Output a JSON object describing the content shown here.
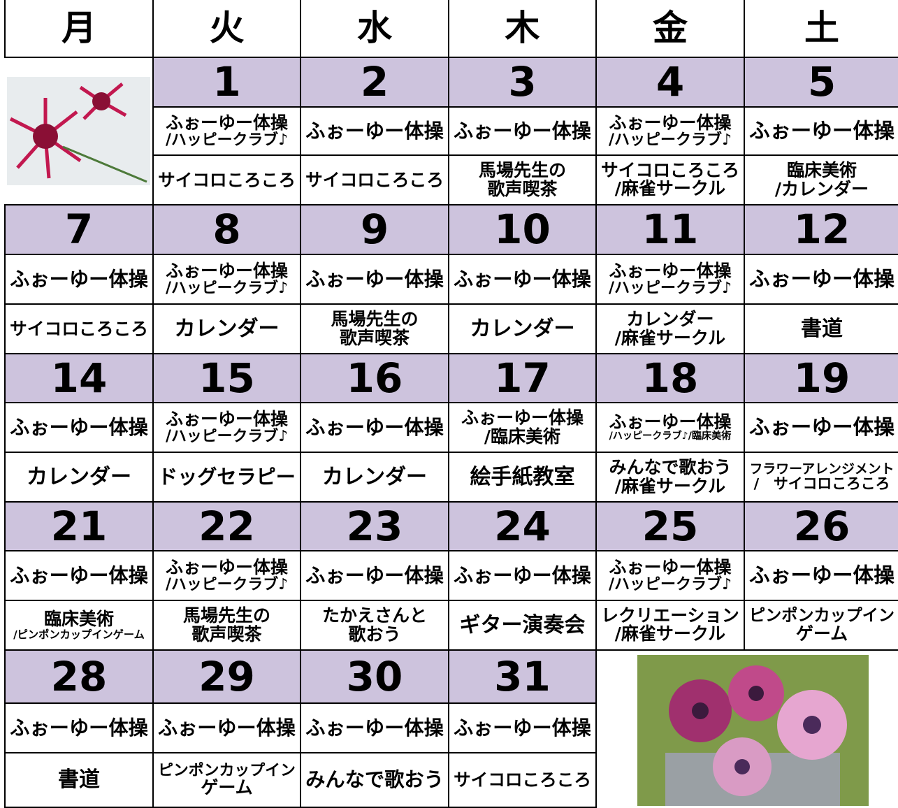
{
  "header": [
    "月",
    "火",
    "水",
    "木",
    "金",
    "土"
  ],
  "weeks": [
    {
      "days": [
        null,
        {
          "date": 1,
          "acts": [
            [
              "ふぉーゆー体操",
              "/ハッピークラブ♪"
            ],
            [
              "サイコロころころ"
            ]
          ]
        },
        {
          "date": 2,
          "acts": [
            [
              "ふぉーゆー体操"
            ],
            [
              "サイコロころころ"
            ]
          ]
        },
        {
          "date": 3,
          "acts": [
            [
              "ふぉーゆー体操"
            ],
            [
              "馬場先生の",
              "歌声喫茶"
            ]
          ]
        },
        {
          "date": 4,
          "acts": [
            [
              "ふぉーゆー体操",
              "/ハッピークラブ♪"
            ],
            [
              "サイコロころころ",
              "/麻雀サークル"
            ]
          ]
        },
        {
          "date": 5,
          "acts": [
            [
              "ふぉーゆー体操"
            ],
            [
              "臨床美術",
              "/カレンダー"
            ]
          ]
        }
      ]
    },
    {
      "days": [
        {
          "date": 7,
          "acts": [
            [
              "ふぉーゆー体操"
            ],
            [
              "サイコロころころ"
            ]
          ]
        },
        {
          "date": 8,
          "acts": [
            [
              "ふぉーゆー体操",
              "/ハッピークラブ♪"
            ],
            [
              "カレンダー"
            ]
          ]
        },
        {
          "date": 9,
          "acts": [
            [
              "ふぉーゆー体操"
            ],
            [
              "馬場先生の",
              "歌声喫茶"
            ]
          ]
        },
        {
          "date": 10,
          "acts": [
            [
              "ふぉーゆー体操"
            ],
            [
              "カレンダー"
            ]
          ]
        },
        {
          "date": 11,
          "acts": [
            [
              "ふぉーゆー体操",
              "/ハッピークラブ♪"
            ],
            [
              "カレンダー",
              "/麻雀サークル"
            ]
          ]
        },
        {
          "date": 12,
          "acts": [
            [
              "ふぉーゆー体操"
            ],
            [
              "書道"
            ]
          ]
        }
      ]
    },
    {
      "days": [
        {
          "date": 14,
          "acts": [
            [
              "ふぉーゆー体操"
            ],
            [
              "カレンダー"
            ]
          ]
        },
        {
          "date": 15,
          "acts": [
            [
              "ふぉーゆー体操",
              "/ハッピークラブ♪"
            ],
            [
              "ドッグセラピー"
            ]
          ]
        },
        {
          "date": 16,
          "acts": [
            [
              "ふぉーゆー体操"
            ],
            [
              "カレンダー"
            ]
          ]
        },
        {
          "date": 17,
          "acts": [
            [
              "ふぉーゆー体操",
              "/臨床美術"
            ],
            [
              "絵手紙教室"
            ]
          ]
        },
        {
          "date": 18,
          "acts": [
            [
              "ふぉーゆー体操",
              "/ハッピークラブ♪/臨床美術"
            ],
            [
              "みんなで歌おう",
              "/麻雀サークル"
            ]
          ]
        },
        {
          "date": 19,
          "acts": [
            [
              "ふぉーゆー体操"
            ],
            [
              "フラワーアレンジメント",
              "/　サイコロころころ"
            ]
          ]
        }
      ]
    },
    {
      "days": [
        {
          "date": 21,
          "acts": [
            [
              "ふぉーゆー体操"
            ],
            [
              "臨床美術",
              "/ピンポンカップインゲーム"
            ]
          ]
        },
        {
          "date": 22,
          "acts": [
            [
              "ふぉーゆー体操",
              "/ハッピークラブ♪"
            ],
            [
              "馬場先生の",
              "歌声喫茶"
            ]
          ]
        },
        {
          "date": 23,
          "acts": [
            [
              "ふぉーゆー体操"
            ],
            [
              "たかえさんと",
              "歌おう"
            ]
          ]
        },
        {
          "date": 24,
          "acts": [
            [
              "ふぉーゆー体操"
            ],
            [
              "ギター演奏会"
            ]
          ]
        },
        {
          "date": 25,
          "acts": [
            [
              "ふぉーゆー体操",
              "/ハッピークラブ♪"
            ],
            [
              "レクリエーション",
              "/麻雀サークル"
            ]
          ]
        },
        {
          "date": 26,
          "acts": [
            [
              "ふぉーゆー体操"
            ],
            [
              "ピンポンカップイン",
              "ゲーム"
            ]
          ]
        }
      ]
    },
    {
      "days": [
        {
          "date": 28,
          "acts": [
            [
              "ふぉーゆー体操"
            ],
            [
              "書道"
            ]
          ]
        },
        {
          "date": 29,
          "acts": [
            [
              "ふぉーゆー体操"
            ],
            [
              "ピンポンカップイン",
              "ゲーム"
            ]
          ]
        },
        {
          "date": 30,
          "acts": [
            [
              "ふぉーゆー体操"
            ],
            [
              "みんなで歌おう"
            ]
          ]
        },
        {
          "date": 31,
          "acts": [
            [
              "ふぉーゆー体操"
            ],
            [
              "サイコロころころ"
            ]
          ]
        },
        null,
        null
      ]
    }
  ]
}
